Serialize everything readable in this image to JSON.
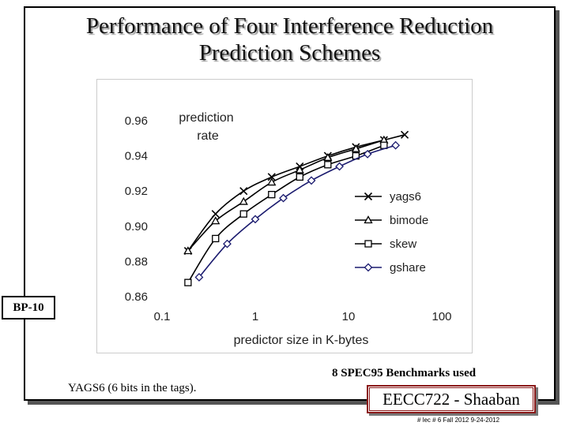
{
  "slide": {
    "title_line1": "Performance of Four Interference Reduction",
    "title_line2": "Prediction Schemes",
    "box_label": "BP-10",
    "footnote": "YAGS6 (6 bits in the tags).",
    "benchmarks": "8 SPEC95 Benchmarks used",
    "author": "EECC722 - Shaaban",
    "lecture": "# lec # 6 Fall 2012 9-24-2012"
  },
  "chart_data": {
    "type": "line",
    "ylabel": "prediction rate",
    "ylabel_line1": "prediction",
    "ylabel_line2": "rate",
    "xlabel": "predictor size in K-bytes",
    "x_scale": "log",
    "xlim": [
      0.1,
      100
    ],
    "ylim": [
      0.86,
      0.96
    ],
    "x_ticks": [
      "0.1",
      "1",
      "10",
      "100"
    ],
    "y_ticks": [
      "0.86",
      "0.88",
      "0.90",
      "0.92",
      "0.94",
      "0.96"
    ],
    "grid": false,
    "legend_position": "right",
    "series": [
      {
        "name": "yags6",
        "marker": "x",
        "color": "#000000",
        "x": [
          0.19,
          0.375,
          0.75,
          1.5,
          3,
          6,
          12,
          24,
          40
        ],
        "y": [
          0.886,
          0.907,
          0.92,
          0.928,
          0.934,
          0.94,
          0.945,
          0.949,
          0.952
        ]
      },
      {
        "name": "bimode",
        "marker": "triangle",
        "color": "#000000",
        "x": [
          0.19,
          0.375,
          0.75,
          1.5,
          3,
          6,
          12,
          24
        ],
        "y": [
          0.886,
          0.903,
          0.914,
          0.925,
          0.932,
          0.939,
          0.944,
          0.949
        ]
      },
      {
        "name": "skew",
        "marker": "square",
        "color": "#000000",
        "x": [
          0.19,
          0.375,
          0.75,
          1.5,
          3,
          6,
          12,
          24
        ],
        "y": [
          0.868,
          0.893,
          0.907,
          0.918,
          0.928,
          0.935,
          0.94,
          0.946
        ]
      },
      {
        "name": "gshare",
        "marker": "diamond",
        "color": "#1a1a6e",
        "x": [
          0.25,
          0.5,
          1,
          2,
          4,
          8,
          16,
          32
        ],
        "y": [
          0.871,
          0.89,
          0.904,
          0.916,
          0.926,
          0.934,
          0.941,
          0.946
        ]
      }
    ]
  }
}
